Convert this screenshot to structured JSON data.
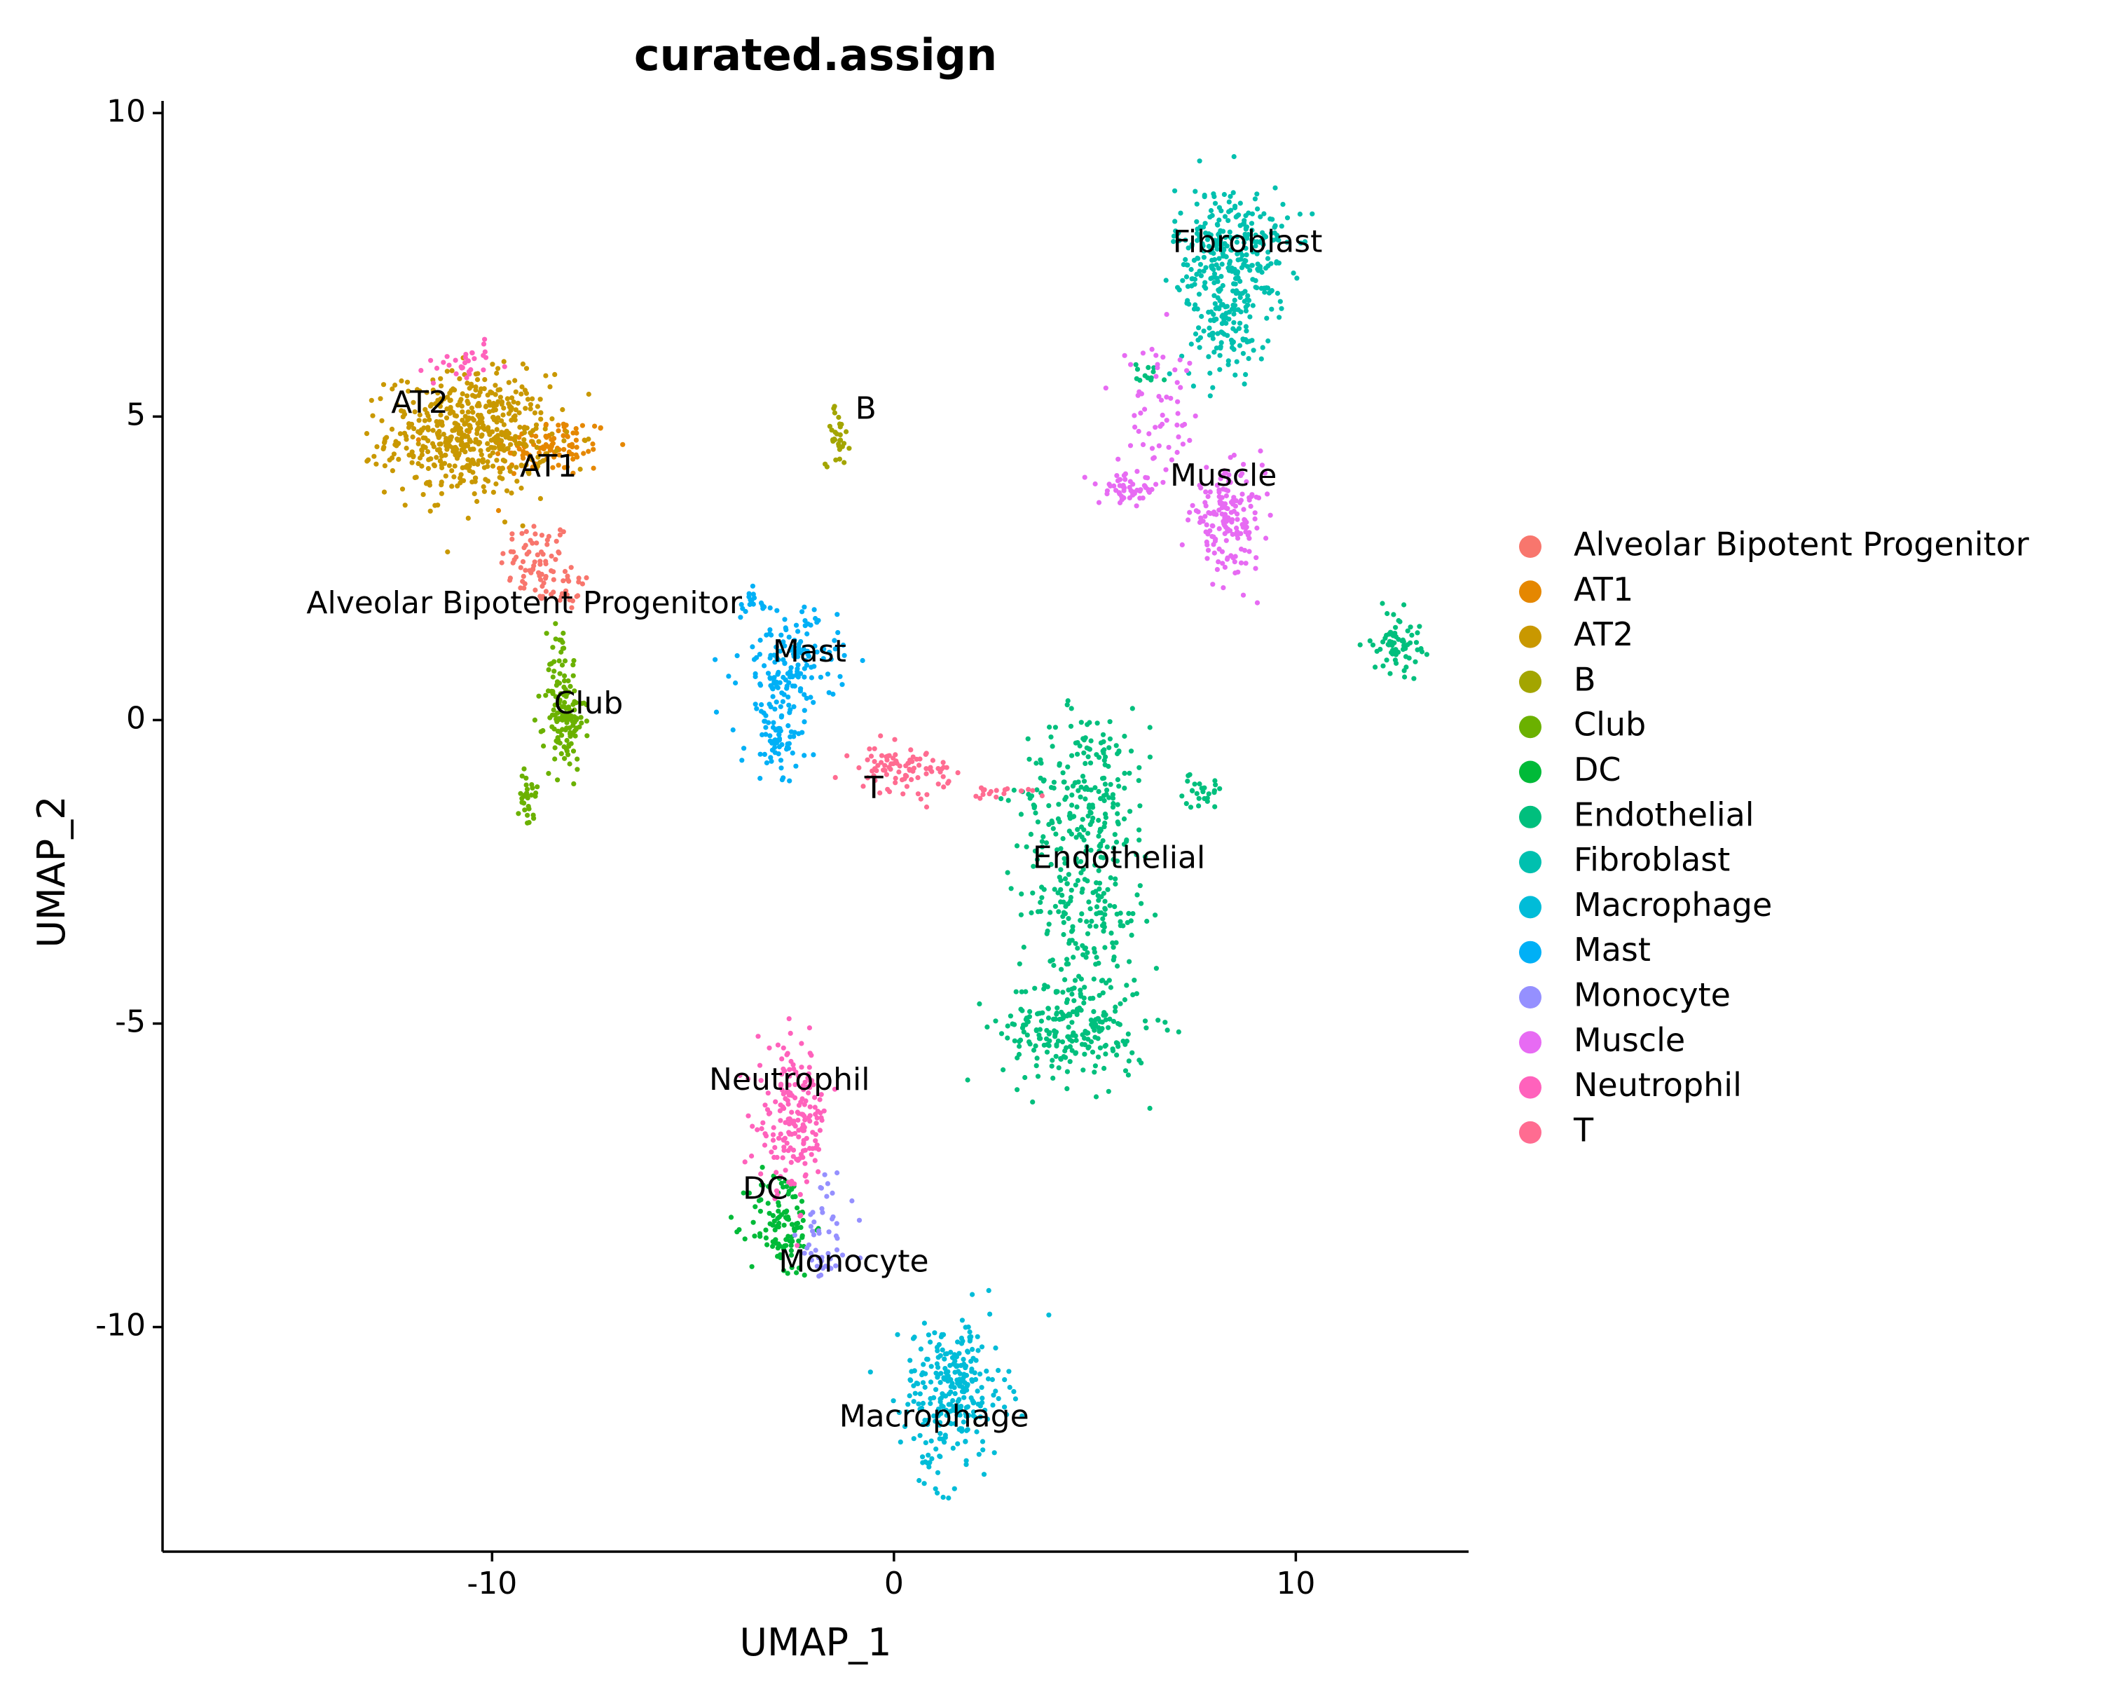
{
  "chart_data": {
    "type": "scatter",
    "title": "curated.assign",
    "xlabel": "UMAP_1",
    "ylabel": "UMAP_2",
    "xlim": [
      -18.2,
      14.3
    ],
    "ylim": [
      -13.7,
      10.2
    ],
    "x_ticks": [
      -10,
      0,
      10
    ],
    "x_tick_labels": [
      "-10",
      "0",
      "10"
    ],
    "y_ticks": [
      -10,
      -5,
      0,
      5,
      10
    ],
    "y_tick_labels": [
      "-10",
      "-5",
      "0",
      "5",
      "10"
    ],
    "grid": false,
    "legend_position": "right",
    "series": [
      {
        "name": "Alveolar Bipotent Progenitor",
        "color": "#F8766D",
        "clusters": [
          {
            "x": -8.9,
            "y": 2.6,
            "sx": 0.45,
            "sy": 0.35,
            "n": 70
          },
          {
            "x": -8.2,
            "y": 2.2,
            "sx": 0.25,
            "sy": 0.2,
            "n": 25
          }
        ]
      },
      {
        "name": "AT1",
        "color": "#E58700",
        "clusters": [
          {
            "x": -8.6,
            "y": 4.5,
            "sx": 0.8,
            "sy": 0.25,
            "n": 110
          }
        ]
      },
      {
        "name": "AT2",
        "color": "#C99800",
        "clusters": [
          {
            "x": -10.6,
            "y": 4.7,
            "sx": 1.0,
            "sy": 0.5,
            "n": 520
          }
        ]
      },
      {
        "name": "B",
        "color": "#A3A500",
        "clusters": [
          {
            "x": -1.4,
            "y": 4.7,
            "sx": 0.15,
            "sy": 0.25,
            "n": 30
          }
        ]
      },
      {
        "name": "Club",
        "color": "#6BB100",
        "clusters": [
          {
            "x": -8.2,
            "y": 0.0,
            "sx": 0.25,
            "sy": 0.4,
            "n": 120
          },
          {
            "x": -9.1,
            "y": -1.2,
            "sx": 0.1,
            "sy": 0.35,
            "n": 30
          },
          {
            "x": -8.3,
            "y": 0.9,
            "sx": 0.15,
            "sy": 0.4,
            "n": 25
          }
        ]
      },
      {
        "name": "DC",
        "color": "#00BA38",
        "clusters": [
          {
            "x": -2.8,
            "y": -8.3,
            "sx": 0.4,
            "sy": 0.45,
            "n": 110
          }
        ]
      },
      {
        "name": "Endothelial",
        "color": "#00BF7D",
        "clusters": [
          {
            "x": 4.8,
            "y": -1.2,
            "sx": 0.8,
            "sy": 0.7,
            "n": 210
          },
          {
            "x": 4.7,
            "y": -3.2,
            "sx": 0.8,
            "sy": 0.7,
            "n": 170
          },
          {
            "x": 4.5,
            "y": -5.1,
            "sx": 0.9,
            "sy": 0.45,
            "n": 230
          },
          {
            "x": 7.6,
            "y": -1.2,
            "sx": 0.3,
            "sy": 0.12,
            "n": 25
          },
          {
            "x": 12.5,
            "y": 1.3,
            "sx": 0.3,
            "sy": 0.25,
            "n": 70
          },
          {
            "x": 6.4,
            "y": 5.7,
            "sx": 0.25,
            "sy": 0.1,
            "n": 12
          }
        ]
      },
      {
        "name": "Fibroblast",
        "color": "#00C0AF",
        "clusters": [
          {
            "x": 8.4,
            "y": 7.7,
            "sx": 0.7,
            "sy": 0.55,
            "n": 300
          },
          {
            "x": 8.2,
            "y": 6.4,
            "sx": 0.5,
            "sy": 0.4,
            "n": 100
          }
        ]
      },
      {
        "name": "Macrophage",
        "color": "#00BCD8",
        "clusters": [
          {
            "x": 1.5,
            "y": -11.0,
            "sx": 0.65,
            "sy": 0.55,
            "n": 260
          },
          {
            "x": 1.0,
            "y": -12.2,
            "sx": 0.2,
            "sy": 0.35,
            "n": 25
          }
        ]
      },
      {
        "name": "Mast",
        "color": "#00B0F6",
        "clusters": [
          {
            "x": -2.6,
            "y": 0.9,
            "sx": 0.6,
            "sy": 0.45,
            "n": 170
          },
          {
            "x": -2.9,
            "y": -0.4,
            "sx": 0.4,
            "sy": 0.3,
            "n": 60
          },
          {
            "x": -3.6,
            "y": 1.9,
            "sx": 0.3,
            "sy": 0.12,
            "n": 15
          }
        ]
      },
      {
        "name": "Monocyte",
        "color": "#9590FF",
        "clusters": [
          {
            "x": -1.7,
            "y": -8.5,
            "sx": 0.35,
            "sy": 0.5,
            "n": 50
          }
        ]
      },
      {
        "name": "Muscle",
        "color": "#E76BF3",
        "clusters": [
          {
            "x": 8.3,
            "y": 3.3,
            "sx": 0.45,
            "sy": 0.4,
            "n": 170
          },
          {
            "x": 5.8,
            "y": 3.8,
            "sx": 0.35,
            "sy": 0.12,
            "n": 50
          },
          {
            "x": 6.6,
            "y": 4.9,
            "sx": 0.5,
            "sy": 0.6,
            "n": 60
          }
        ]
      },
      {
        "name": "Neutrophil",
        "color": "#FF62BC",
        "clusters": [
          {
            "x": -2.5,
            "y": -6.6,
            "sx": 0.45,
            "sy": 0.6,
            "n": 190
          },
          {
            "x": -10.6,
            "y": 5.9,
            "sx": 0.35,
            "sy": 0.15,
            "n": 30
          }
        ]
      },
      {
        "name": "T",
        "color": "#FF6C91",
        "clusters": [
          {
            "x": 0.2,
            "y": -0.8,
            "sx": 0.6,
            "sy": 0.18,
            "n": 90
          },
          {
            "x": 2.7,
            "y": -1.2,
            "sx": 0.6,
            "sy": 0.06,
            "n": 18
          }
        ]
      }
    ],
    "cluster_labels": [
      {
        "text": "Fibroblast",
        "x": 8.8,
        "y": 7.85
      },
      {
        "text": "AT2",
        "x": -11.8,
        "y": 5.2
      },
      {
        "text": "B",
        "x": -0.7,
        "y": 5.1
      },
      {
        "text": "AT1",
        "x": -8.6,
        "y": 4.15
      },
      {
        "text": "Muscle",
        "x": 8.2,
        "y": 4.0
      },
      {
        "text": "Alveolar Bipotent Progenitor",
        "x": -9.2,
        "y": 1.9
      },
      {
        "text": "Mast",
        "x": -2.1,
        "y": 1.1
      },
      {
        "text": "Club",
        "x": -7.6,
        "y": 0.25
      },
      {
        "text": "T",
        "x": -0.5,
        "y": -1.15
      },
      {
        "text": "Endothelial",
        "x": 5.6,
        "y": -2.3
      },
      {
        "text": "Neutrophil",
        "x": -2.6,
        "y": -5.95
      },
      {
        "text": "DC",
        "x": -3.2,
        "y": -7.75
      },
      {
        "text": "Monocyte",
        "x": -1.0,
        "y": -8.95
      },
      {
        "text": "Macrophage",
        "x": 1.0,
        "y": -11.5
      }
    ]
  }
}
